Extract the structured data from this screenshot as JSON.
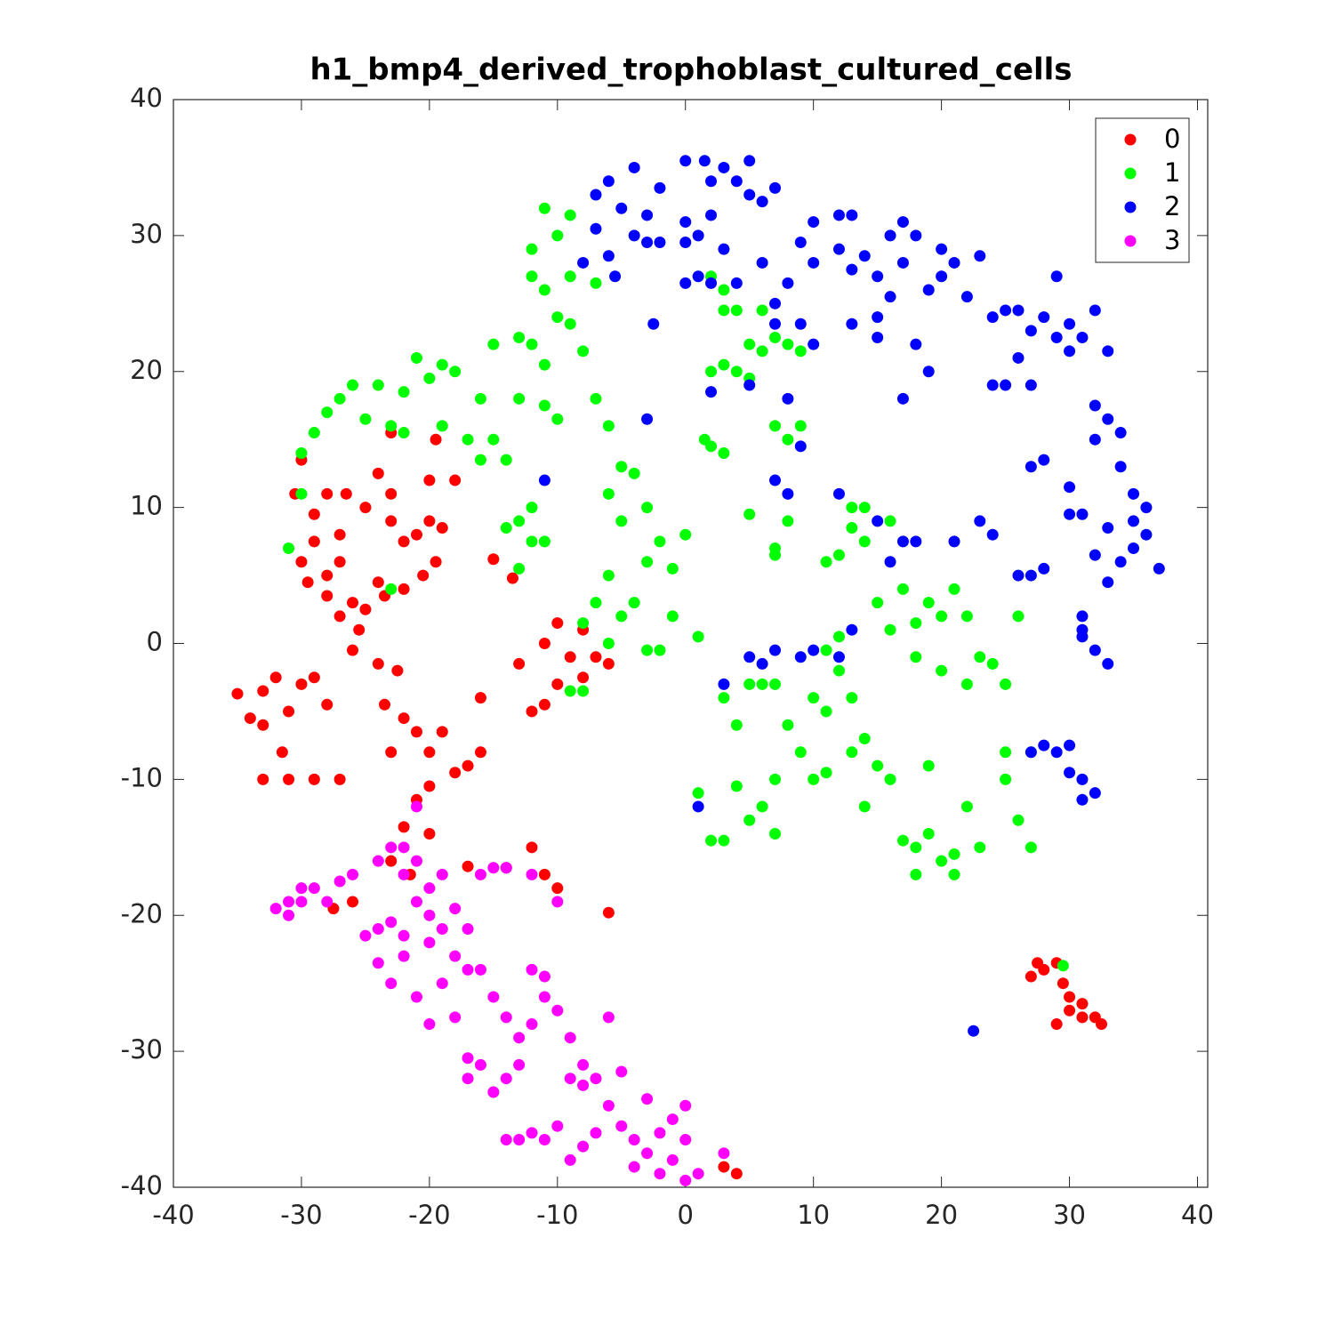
{
  "chart_data": {
    "type": "scatter",
    "title": "h1_bmp4_derived_trophoblast_cultured_cells",
    "xlim": [
      -40,
      40.8
    ],
    "ylim": [
      -40,
      40
    ],
    "xticks": [
      -40,
      -30,
      -20,
      -10,
      0,
      10,
      20,
      30,
      40
    ],
    "yticks": [
      -40,
      -30,
      -20,
      -10,
      0,
      10,
      20,
      30,
      40
    ],
    "grid": false,
    "legend": "upper right",
    "series": [
      {
        "name": "0",
        "color": "#ff0000",
        "x": [
          -30,
          -30.5,
          -29,
          -29,
          -30,
          -29.5,
          -28,
          -27,
          -28,
          -27,
          -26,
          -25.5,
          -28,
          -26.5,
          -25,
          -27,
          -24,
          -23,
          -23,
          -22,
          -21,
          -20,
          -20,
          -19,
          -19.5,
          -20.5,
          -22,
          -24,
          -23.5,
          -25,
          -26,
          -24,
          -22.5,
          -23.5,
          -22,
          -21,
          -20,
          -19,
          -18,
          -17,
          -16,
          -16,
          -23,
          -20,
          -21,
          -22,
          -20,
          -23,
          -21.5,
          -32,
          -33,
          -34,
          -35,
          -33,
          -31,
          -31.5,
          -31,
          -33,
          -29,
          -30,
          -29,
          -28,
          -27,
          -23,
          -19.5,
          -18,
          -17,
          -12,
          -11,
          -10,
          -14,
          -26,
          -27.5,
          -6,
          -10,
          -11,
          -9,
          -8,
          -10,
          -11,
          -12,
          -13,
          -7,
          -6,
          -8,
          -15,
          -13.5,
          27,
          28,
          29,
          29.5,
          30,
          31,
          31,
          32,
          32.5,
          29,
          30,
          27.5,
          4,
          3
        ],
        "y": [
          13.5,
          11,
          9.5,
          7.5,
          6,
          4.5,
          5,
          6,
          3.5,
          2,
          3,
          1,
          11,
          11,
          10,
          8,
          12.5,
          11,
          9,
          7.5,
          8,
          12,
          9,
          8.5,
          6,
          5,
          4,
          4.5,
          3.5,
          2.5,
          -0.5,
          -1.5,
          -2,
          -4.5,
          -5.5,
          -6.5,
          -8,
          -6.5,
          -9.5,
          -9,
          -8,
          -4,
          -8,
          -10.5,
          -11.5,
          -13.5,
          -14,
          -16,
          -17,
          -2.5,
          -3.5,
          -5.5,
          -3.7,
          -6,
          -5,
          -8,
          -10,
          -10,
          -10,
          -3,
          -2.5,
          -4.5,
          -10,
          15.5,
          15,
          12,
          -16.4,
          -15,
          -17,
          -18,
          -16.5,
          -19,
          -19.5,
          -19.8,
          1.5,
          0,
          -1,
          1,
          -3,
          -4.5,
          -5,
          -1.5,
          -1,
          -1.5,
          -2.5,
          6.2,
          4.8,
          -24.5,
          -24,
          -23.5,
          -25,
          -26,
          -26.5,
          -27.5,
          -27.5,
          -28,
          -28,
          -27,
          -23.5,
          -39,
          -38.5
        ]
      },
      {
        "name": "1",
        "color": "#00ff00",
        "x": [
          -30,
          -29,
          -28,
          -27,
          -26,
          -25,
          -24,
          -23,
          -22,
          -21,
          -20,
          -19,
          -18,
          -17,
          -16,
          -15,
          -14,
          -15,
          -13,
          -12,
          -11,
          -10,
          -9,
          -8,
          -7,
          -12,
          -12,
          -11,
          -10,
          -9,
          -9,
          -11,
          -19,
          -22,
          -16,
          -13,
          -11,
          -10,
          -14,
          -13,
          -12,
          -12,
          -11,
          -13,
          -30,
          -31,
          -23,
          -7,
          -6,
          -5,
          -6,
          -5,
          -4,
          -3,
          -2,
          -1,
          0,
          -3,
          -4,
          -5,
          -6,
          -7,
          -8,
          -6,
          -3,
          -2,
          -1,
          1,
          -8,
          -9,
          2,
          3,
          1.5,
          2,
          3,
          4,
          5,
          6,
          7,
          8,
          9,
          4,
          5,
          6,
          3,
          2,
          3,
          7,
          8,
          9,
          5,
          7,
          7,
          8,
          11,
          12,
          13,
          14,
          13,
          14,
          15,
          16,
          17,
          18,
          19,
          20,
          21,
          22,
          18,
          20,
          23,
          24,
          25,
          26,
          22,
          16,
          3,
          4,
          5,
          6,
          7,
          8,
          9,
          10,
          11,
          7,
          6,
          7,
          5,
          4,
          3,
          2,
          1,
          11,
          12,
          13,
          13,
          14,
          15,
          14,
          16,
          17,
          18,
          19,
          20,
          21,
          22,
          23,
          21,
          18,
          19,
          25,
          26,
          27,
          25,
          27,
          10,
          11,
          12,
          29.5
        ],
        "y": [
          14,
          15.5,
          17,
          18,
          19,
          16.5,
          19,
          16,
          18.5,
          21,
          19.5,
          20.5,
          20,
          15,
          13.5,
          15,
          13.5,
          22,
          22.5,
          22,
          20.5,
          24,
          23.5,
          21.5,
          26.5,
          29,
          27,
          26,
          30,
          31.5,
          27,
          32,
          16,
          15.5,
          18,
          18,
          17.5,
          16.5,
          8.5,
          9,
          10,
          7.5,
          7.5,
          5.5,
          11,
          7,
          4,
          18,
          16,
          13,
          11,
          9,
          12.5,
          10,
          7.5,
          5.5,
          8,
          6,
          3,
          2,
          5,
          3,
          1.5,
          0,
          -0.5,
          -0.5,
          2,
          0.5,
          -3.5,
          -3.5,
          14.5,
          14,
          15,
          20,
          20.5,
          20,
          19.5,
          21.5,
          22.5,
          22,
          21.5,
          24.5,
          22,
          24.5,
          24.5,
          27,
          26,
          16,
          15,
          16,
          9.5,
          7,
          6.5,
          9,
          6,
          6.5,
          8.5,
          7.5,
          10,
          10,
          3,
          1,
          4,
          1.5,
          3,
          2,
          4,
          2,
          -1,
          -2,
          -1,
          -1.5,
          -3,
          2,
          -3,
          9,
          -4,
          -6,
          -3,
          -3,
          -3,
          -6,
          -8,
          -10,
          -9.5,
          -10,
          -12,
          -14,
          -13,
          -10.5,
          -14.5,
          -14.5,
          -11,
          -5,
          -2,
          -4,
          -8,
          -7,
          -9,
          -12,
          -10,
          -14.5,
          -15,
          -14,
          -16,
          -15.5,
          -12,
          -15,
          -17,
          -17,
          -9,
          -8,
          -13,
          -15,
          -10,
          -8,
          -4,
          -0.5,
          0.5,
          -23.7
        ]
      },
      {
        "name": "2",
        "color": "#0000ff",
        "x": [
          -7,
          -6,
          -5,
          -4,
          -3,
          -4,
          -2,
          -8,
          -7,
          -6,
          -5.5,
          -3,
          -2,
          0,
          1,
          0,
          1.5,
          2,
          3,
          4,
          5,
          5,
          6,
          7,
          0,
          2,
          3,
          1,
          2,
          0,
          4,
          6,
          7,
          8,
          9,
          10,
          10,
          12,
          13,
          12,
          13,
          14,
          15,
          16,
          17,
          17,
          18,
          19,
          20,
          20,
          21,
          22,
          23,
          24,
          25,
          26,
          27,
          28,
          29,
          30,
          31,
          32,
          33,
          29,
          30,
          26,
          25,
          24,
          27,
          16,
          15,
          13,
          15,
          18,
          19,
          17,
          9,
          10,
          7,
          8,
          2,
          5,
          -3,
          -11,
          7,
          8,
          9,
          12,
          15,
          16,
          17,
          18,
          21,
          23,
          24,
          26,
          27,
          28,
          27,
          28,
          30,
          30,
          31,
          32,
          32,
          33,
          34,
          34,
          35,
          36,
          33,
          34,
          35,
          36,
          37,
          32,
          33,
          35,
          31,
          31,
          32,
          33,
          31,
          28,
          29,
          30,
          30,
          31,
          31,
          32,
          27,
          5,
          6,
          7,
          9,
          10,
          12,
          13,
          3,
          1,
          22.5,
          -2.5
        ],
        "y": [
          33,
          34,
          32,
          30,
          31.5,
          35,
          33.5,
          28,
          30.5,
          28.5,
          27,
          29.5,
          29.5,
          29.5,
          30,
          35.5,
          35.5,
          34,
          35,
          34,
          33,
          35.5,
          32.5,
          33.5,
          31,
          31.5,
          29,
          27,
          26.5,
          26.5,
          26.5,
          28,
          25,
          26.5,
          29.5,
          28,
          31,
          31.5,
          31.5,
          29,
          27.5,
          28.5,
          27,
          30,
          31,
          28,
          30,
          26,
          29,
          27,
          28,
          25.5,
          28.5,
          24,
          24.5,
          24.5,
          23,
          24,
          22.5,
          23.5,
          22.5,
          24.5,
          21.5,
          27,
          21.5,
          21,
          19,
          19,
          19,
          25.5,
          24,
          23.5,
          22.5,
          22,
          20,
          18,
          23.5,
          22,
          23.5,
          18,
          18.5,
          19,
          16.5,
          12,
          12,
          11,
          14.5,
          11,
          9,
          6,
          7.5,
          7.5,
          7.5,
          9,
          8,
          5,
          5,
          5.5,
          13,
          13.5,
          11.5,
          9.5,
          9.5,
          15,
          17.5,
          16.5,
          15.5,
          13,
          11,
          10,
          8.5,
          6,
          7,
          8,
          5.5,
          6.5,
          4.5,
          9,
          2,
          1,
          -0.5,
          -1.5,
          0.5,
          -7.5,
          -8,
          -7.5,
          -9.5,
          -10,
          -11.5,
          -11,
          -8,
          -1,
          -1.5,
          -0.5,
          -1,
          -0.5,
          -1,
          1,
          -3,
          -12,
          -28.5,
          23.5
        ]
      },
      {
        "name": "3",
        "color": "#ff00ff",
        "x": [
          -32,
          -31,
          -31,
          -30,
          -30,
          -29,
          -28,
          -27,
          -26,
          -25,
          -24,
          -23,
          -22,
          -24,
          -23,
          -22,
          -21,
          -20,
          -19,
          -21,
          -20,
          -19,
          -18,
          -17,
          -22,
          -23,
          -24,
          -21,
          -20,
          -19,
          -18,
          -17,
          -16,
          -15,
          -14,
          -13,
          -12,
          -11,
          -12,
          -11,
          -10,
          -9,
          -8,
          -9,
          -8,
          -7,
          -6,
          -5,
          -6,
          -5,
          -4,
          -3,
          -4,
          -2,
          -1,
          0,
          0,
          -1,
          -2,
          0,
          1,
          3,
          -3,
          -7,
          -8,
          -9,
          -10,
          -11,
          -13,
          -14,
          -12,
          -14,
          -15,
          -16,
          -17,
          -17,
          -13,
          -20,
          -18,
          -14,
          -12,
          -10,
          -21,
          -22,
          -16,
          -15
        ],
        "y": [
          -19.5,
          -19,
          -20,
          -19,
          -18,
          -18,
          -19,
          -17.5,
          -17,
          -21.5,
          -21,
          -20.5,
          -21.5,
          -16,
          -15,
          -17,
          -16,
          -18,
          -17,
          -19,
          -20,
          -21,
          -19.5,
          -21,
          -23,
          -25,
          -23.5,
          -26,
          -28,
          -25,
          -27.5,
          -24,
          -24,
          -26,
          -27.5,
          -29,
          -28,
          -26,
          -24,
          -24.5,
          -27,
          -29,
          -31,
          -32,
          -32.5,
          -32,
          -27.5,
          -31.5,
          -34,
          -35.5,
          -36.5,
          -37.5,
          -38.5,
          -36,
          -35,
          -34,
          -36.5,
          -38,
          -39,
          -39.5,
          -39,
          -37.5,
          -33.5,
          -36,
          -37,
          -38,
          -35.5,
          -36.5,
          -36.5,
          -36.5,
          -36,
          -32,
          -33,
          -31,
          -30.5,
          -32,
          -31,
          -22,
          -23,
          -16.5,
          -17,
          -19,
          -12,
          -15,
          -17,
          -16.5
        ]
      }
    ]
  }
}
